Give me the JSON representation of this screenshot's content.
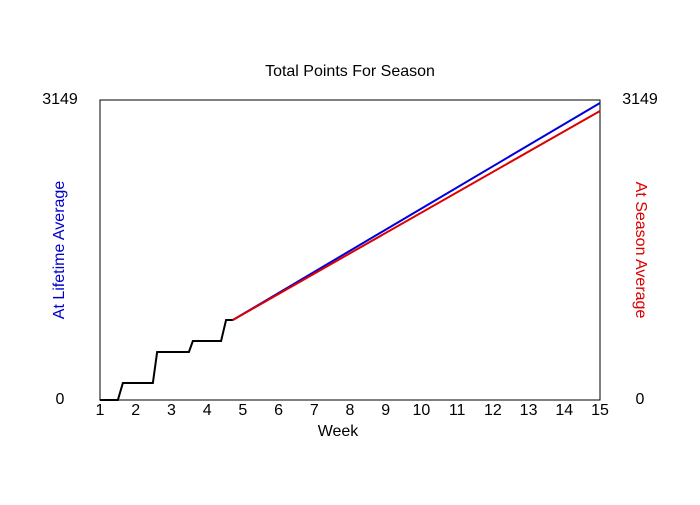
{
  "chart_data": {
    "type": "line",
    "title": "Total Points For Season",
    "xlabel": "Week",
    "ylabel": "At Lifetime Average",
    "ylabel_color": "#0000cc",
    "y2label": "At Season Average",
    "y2label_color": "#dd0000",
    "xlim": [
      1,
      15
    ],
    "xticks": [
      1,
      2,
      3,
      4,
      5,
      6,
      7,
      8,
      9,
      10,
      11,
      12,
      13,
      14,
      15
    ],
    "ylim": [
      0,
      3149
    ],
    "yticks": [
      0,
      3149
    ],
    "y2lim": [
      0,
      3149
    ],
    "y2ticks": [
      0,
      3149
    ],
    "grid": false,
    "series": [
      {
        "color": "#000000",
        "x": [
          1,
          1.5,
          1.64,
          2.48,
          2.6,
          3.49,
          3.6,
          4.39,
          4.53,
          4.72
        ],
        "values": [
          0,
          0,
          178,
          178,
          504,
          504,
          619,
          619,
          840,
          840
        ]
      },
      {
        "color": "#0000dd",
        "x": [
          4.72,
          15
        ],
        "values": [
          840,
          3118
        ]
      },
      {
        "color": "#dd0000",
        "axis": "y2",
        "x": [
          4.72,
          15
        ],
        "values": [
          840,
          3034
        ]
      }
    ]
  }
}
